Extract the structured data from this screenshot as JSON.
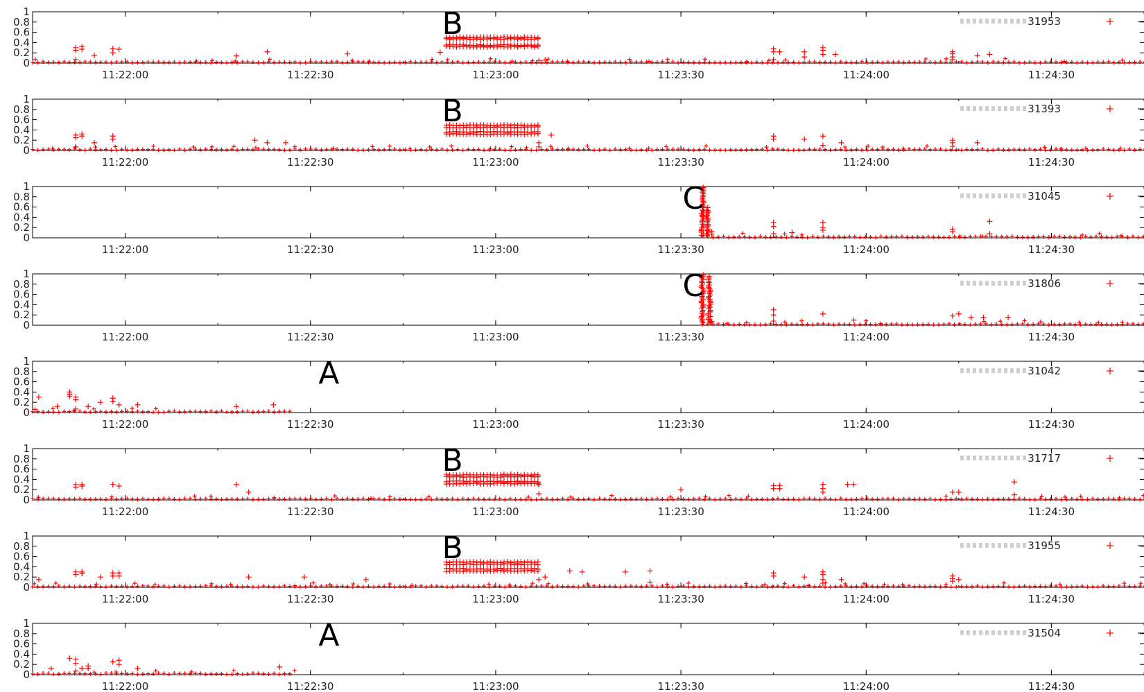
{
  "chart_data": [
    {
      "type": "scatter",
      "legend": "31953",
      "annotations": [
        {
          "label": "B",
          "x": "11:22:53"
        }
      ],
      "x_ticks": [
        "11:22:00",
        "11:22:30",
        "11:23:00",
        "11:23:30",
        "11:24:00",
        "11:24:30"
      ],
      "y_ticks": [
        "0",
        "0.2",
        "0.4",
        "0.6",
        "0.8",
        "1"
      ],
      "ylim": [
        0,
        1
      ],
      "xlim": [
        "11:21:45",
        "11:24:45"
      ],
      "x_range": [
        0,
        180
      ],
      "marker": "+",
      "color": "#ff0000",
      "data_start": 0,
      "data_end": 180,
      "blocks": [
        {
          "from": 67,
          "to": 82,
          "levels": [
            0.32,
            0.35,
            0.47,
            0.5
          ]
        }
      ],
      "points": [
        [
          7,
          0.3
        ],
        [
          7,
          0.25
        ],
        [
          7,
          0.07
        ],
        [
          8,
          0.32
        ],
        [
          8,
          0.27
        ],
        [
          10,
          0.15
        ],
        [
          13,
          0.28
        ],
        [
          13,
          0.2
        ],
        [
          14,
          0.27
        ],
        [
          33,
          0.14
        ],
        [
          38,
          0.22
        ],
        [
          51,
          0.18
        ],
        [
          66,
          0.21
        ],
        [
          82,
          0.05
        ],
        [
          83,
          0.06
        ],
        [
          120,
          0.28
        ],
        [
          120,
          0.22
        ],
        [
          120,
          0.07
        ],
        [
          121,
          0.22
        ],
        [
          125,
          0.22
        ],
        [
          125,
          0.12
        ],
        [
          128,
          0.3
        ],
        [
          128,
          0.25
        ],
        [
          128,
          0.17
        ],
        [
          130,
          0.17
        ],
        [
          149,
          0.18
        ],
        [
          149,
          0.22
        ],
        [
          149,
          0.12
        ],
        [
          149,
          0.07
        ],
        [
          153,
          0.15
        ],
        [
          155,
          0.17
        ]
      ]
    },
    {
      "type": "scatter",
      "legend": "31393",
      "annotations": [
        {
          "label": "B",
          "x": "11:22:53"
        }
      ],
      "x_ticks": [
        "11:22:00",
        "11:22:30",
        "11:23:00",
        "11:23:30",
        "11:24:00",
        "11:24:30"
      ],
      "y_ticks": [
        "0",
        "0.2",
        "0.4",
        "0.6",
        "0.8",
        "1"
      ],
      "ylim": [
        0,
        1
      ],
      "xlim": [
        "11:21:45",
        "11:24:45"
      ],
      "x_range": [
        0,
        180
      ],
      "marker": "+",
      "color": "#ff0000",
      "data_start": 0,
      "data_end": 180,
      "blocks": [
        {
          "from": 67,
          "to": 82,
          "levels": [
            0.32,
            0.36,
            0.45,
            0.49
          ]
        }
      ],
      "points": [
        [
          7,
          0.3
        ],
        [
          7,
          0.25
        ],
        [
          7,
          0.07
        ],
        [
          8,
          0.32
        ],
        [
          8,
          0.28
        ],
        [
          10,
          0.15
        ],
        [
          13,
          0.28
        ],
        [
          13,
          0.22
        ],
        [
          36,
          0.2
        ],
        [
          38,
          0.15
        ],
        [
          41,
          0.15
        ],
        [
          82,
          0.07
        ],
        [
          82,
          0.15
        ],
        [
          84,
          0.3
        ],
        [
          120,
          0.28
        ],
        [
          120,
          0.22
        ],
        [
          125,
          0.22
        ],
        [
          128,
          0.28
        ],
        [
          128,
          0.1
        ],
        [
          131,
          0.15
        ],
        [
          149,
          0.2
        ],
        [
          149,
          0.15
        ],
        [
          149,
          0.08
        ],
        [
          153,
          0.15
        ]
      ]
    },
    {
      "type": "scatter",
      "legend": "31045",
      "annotations": [
        {
          "label": "C",
          "x": "11:23:32"
        }
      ],
      "x_ticks": [
        "11:22:00",
        "11:22:30",
        "11:23:00",
        "11:23:30",
        "11:24:00",
        "11:24:30"
      ],
      "y_ticks": [
        "0",
        "0.2",
        "0.4",
        "0.6",
        "0.8",
        "1"
      ],
      "ylim": [
        0,
        1
      ],
      "xlim": [
        "11:21:45",
        "11:24:45"
      ],
      "x_range": [
        0,
        180
      ],
      "marker": "+",
      "color": "#ff0000",
      "data_start": 108.5,
      "data_end": 180,
      "spikes": [
        {
          "x": 108.5,
          "max": 1.0
        },
        {
          "x": 109.3,
          "max": 0.6
        }
      ],
      "points": [
        [
          110,
          0.12
        ],
        [
          110,
          0.07
        ],
        [
          120,
          0.3
        ],
        [
          120,
          0.22
        ],
        [
          120,
          0.08
        ],
        [
          123,
          0.1
        ],
        [
          128,
          0.3
        ],
        [
          128,
          0.2
        ],
        [
          128,
          0.15
        ],
        [
          149,
          0.17
        ],
        [
          149,
          0.12
        ],
        [
          155,
          0.32
        ],
        [
          155,
          0.08
        ]
      ]
    },
    {
      "type": "scatter",
      "legend": "31806",
      "annotations": [
        {
          "label": "C",
          "x": "11:23:32"
        }
      ],
      "x_ticks": [
        "11:22:00",
        "11:22:30",
        "11:23:00",
        "11:23:30",
        "11:24:00",
        "11:24:30"
      ],
      "y_ticks": [
        "0",
        "0.2",
        "0.4",
        "0.6",
        "0.8",
        "1"
      ],
      "ylim": [
        0,
        1
      ],
      "xlim": [
        "11:21:45",
        "11:24:45"
      ],
      "x_range": [
        0,
        180
      ],
      "marker": "+",
      "color": "#ff0000",
      "data_start": 108.5,
      "data_end": 180,
      "spikes": [
        {
          "x": 108.5,
          "max": 1.0
        },
        {
          "x": 109.6,
          "max": 0.98
        }
      ],
      "points": [
        [
          110,
          0.07
        ],
        [
          120,
          0.3
        ],
        [
          120,
          0.2
        ],
        [
          120,
          0.08
        ],
        [
          128,
          0.22
        ],
        [
          133,
          0.1
        ],
        [
          149,
          0.18
        ],
        [
          150,
          0.22
        ],
        [
          152,
          0.15
        ],
        [
          154,
          0.15
        ],
        [
          158,
          0.15
        ]
      ]
    },
    {
      "type": "scatter",
      "legend": "31042",
      "annotations": [
        {
          "label": "A",
          "x": "11:22:33"
        }
      ],
      "x_ticks": [
        "11:22:00",
        "11:22:30",
        "11:23:00",
        "11:23:30",
        "11:24:00",
        "11:24:30"
      ],
      "y_ticks": [
        "0",
        "0.2",
        "0.4",
        "0.6",
        "0.8",
        "1"
      ],
      "ylim": [
        0,
        1
      ],
      "xlim": [
        "11:21:45",
        "11:24:45"
      ],
      "x_range": [
        0,
        180
      ],
      "marker": "+",
      "color": "#ff0000",
      "data_start": 0,
      "data_end": 42,
      "points": [
        [
          1,
          0.3
        ],
        [
          4,
          0.12
        ],
        [
          6,
          0.4
        ],
        [
          6,
          0.36
        ],
        [
          6,
          0.32
        ],
        [
          7,
          0.3
        ],
        [
          7,
          0.25
        ],
        [
          7,
          0.07
        ],
        [
          9,
          0.12
        ],
        [
          11,
          0.2
        ],
        [
          13,
          0.28
        ],
        [
          13,
          0.22
        ],
        [
          14,
          0.15
        ],
        [
          17,
          0.15
        ],
        [
          33,
          0.12
        ],
        [
          39,
          0.15
        ]
      ]
    },
    {
      "type": "scatter",
      "legend": "31717",
      "annotations": [
        {
          "label": "B",
          "x": "11:22:53"
        }
      ],
      "x_ticks": [
        "11:22:00",
        "11:22:30",
        "11:23:00",
        "11:23:30",
        "11:24:00",
        "11:24:30"
      ],
      "y_ticks": [
        "0",
        "0.2",
        "0.4",
        "0.6",
        "0.8",
        "1"
      ],
      "ylim": [
        0,
        1
      ],
      "xlim": [
        "11:21:45",
        "11:24:45"
      ],
      "x_range": [
        0,
        180
      ],
      "marker": "+",
      "color": "#ff0000",
      "data_start": 0,
      "data_end": 180,
      "blocks": [
        {
          "from": 67,
          "to": 82,
          "levels": [
            0.32,
            0.36,
            0.45,
            0.49
          ]
        }
      ],
      "points": [
        [
          7,
          0.3
        ],
        [
          7,
          0.25
        ],
        [
          8,
          0.3
        ],
        [
          8,
          0.27
        ],
        [
          13,
          0.3
        ],
        [
          14,
          0.27
        ],
        [
          33,
          0.3
        ],
        [
          35,
          0.15
        ],
        [
          82,
          0.12
        ],
        [
          82,
          0.3
        ],
        [
          105,
          0.2
        ],
        [
          120,
          0.28
        ],
        [
          120,
          0.22
        ],
        [
          121,
          0.28
        ],
        [
          121,
          0.22
        ],
        [
          128,
          0.3
        ],
        [
          128,
          0.22
        ],
        [
          128,
          0.15
        ],
        [
          132,
          0.3
        ],
        [
          133,
          0.3
        ],
        [
          149,
          0.15
        ],
        [
          150,
          0.15
        ],
        [
          159,
          0.35
        ],
        [
          159,
          0.1
        ]
      ]
    },
    {
      "type": "scatter",
      "legend": "31955",
      "annotations": [
        {
          "label": "B",
          "x": "11:22:53"
        }
      ],
      "x_ticks": [
        "11:22:00",
        "11:22:30",
        "11:23:00",
        "11:23:30",
        "11:24:00",
        "11:24:30"
      ],
      "y_ticks": [
        "0",
        "0.2",
        "0.4",
        "0.6",
        "0.8",
        "1"
      ],
      "ylim": [
        0,
        1
      ],
      "xlim": [
        "11:21:45",
        "11:24:45"
      ],
      "x_range": [
        0,
        180
      ],
      "marker": "+",
      "color": "#ff0000",
      "data_start": 0,
      "data_end": 180,
      "blocks": [
        {
          "from": 67,
          "to": 82,
          "levels": [
            0.32,
            0.36,
            0.45,
            0.49
          ]
        }
      ],
      "points": [
        [
          1,
          0.15
        ],
        [
          7,
          0.3
        ],
        [
          7,
          0.25
        ],
        [
          8,
          0.3
        ],
        [
          8,
          0.27
        ],
        [
          11,
          0.2
        ],
        [
          13,
          0.28
        ],
        [
          13,
          0.22
        ],
        [
          14,
          0.28
        ],
        [
          14,
          0.22
        ],
        [
          35,
          0.2
        ],
        [
          44,
          0.2
        ],
        [
          54,
          0.15
        ],
        [
          82,
          0.15
        ],
        [
          83,
          0.2
        ],
        [
          87,
          0.32
        ],
        [
          89,
          0.3
        ],
        [
          96,
          0.3
        ],
        [
          100,
          0.32
        ],
        [
          100,
          0.1
        ],
        [
          120,
          0.28
        ],
        [
          120,
          0.22
        ],
        [
          125,
          0.2
        ],
        [
          128,
          0.3
        ],
        [
          128,
          0.25
        ],
        [
          128,
          0.15
        ],
        [
          128,
          0.08
        ],
        [
          131,
          0.15
        ],
        [
          149,
          0.22
        ],
        [
          149,
          0.17
        ],
        [
          149,
          0.12
        ],
        [
          150,
          0.15
        ]
      ]
    },
    {
      "type": "scatter",
      "legend": "31504",
      "annotations": [
        {
          "label": "A",
          "x": "11:22:33"
        }
      ],
      "x_ticks": [
        "11:22:00",
        "11:22:30",
        "11:23:00",
        "11:23:30",
        "11:24:00",
        "11:24:30"
      ],
      "y_ticks": [
        "0",
        "0.2",
        "0.4",
        "0.6",
        "0.8",
        "1"
      ],
      "ylim": [
        0,
        1
      ],
      "xlim": [
        "11:21:45",
        "11:24:45"
      ],
      "x_range": [
        0,
        180
      ],
      "marker": "+",
      "color": "#ff0000",
      "data_start": 0,
      "data_end": 42,
      "points": [
        [
          3,
          0.12
        ],
        [
          6,
          0.32
        ],
        [
          7,
          0.3
        ],
        [
          7,
          0.22
        ],
        [
          7,
          0.07
        ],
        [
          8,
          0.12
        ],
        [
          9,
          0.17
        ],
        [
          9,
          0.12
        ],
        [
          13,
          0.25
        ],
        [
          14,
          0.28
        ],
        [
          14,
          0.2
        ],
        [
          17,
          0.12
        ],
        [
          40,
          0.15
        ]
      ]
    }
  ]
}
